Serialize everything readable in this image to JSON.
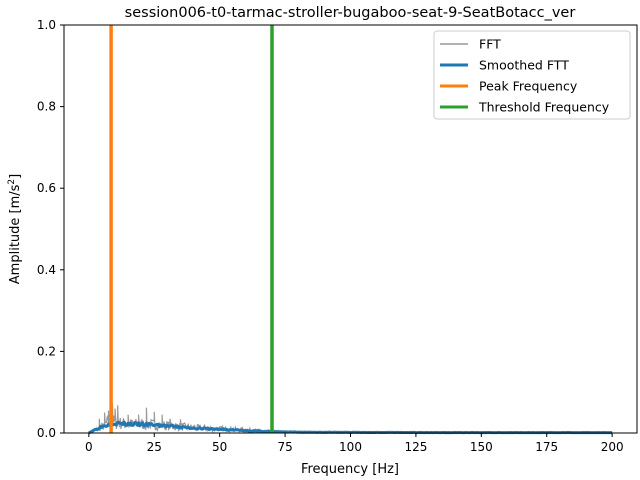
{
  "chart_data": {
    "type": "line",
    "title": "session006-t0-tarmac-stroller-bugaboo-seat-9-SeatBotacc_ver",
    "xlabel": "Frequency [Hz]",
    "ylabel_main": "Amplitude [m/s",
    "ylabel_sup": "2",
    "ylabel_end": "]",
    "xlim": [
      -9.5,
      209.5
    ],
    "ylim": [
      0,
      1.0
    ],
    "xticks": [
      0,
      25,
      50,
      75,
      100,
      125,
      150,
      175,
      200
    ],
    "yticks": [
      0.0,
      0.2,
      0.4,
      0.6,
      0.8,
      1.0
    ],
    "ytick_labels": [
      "0.0",
      "0.2",
      "0.4",
      "0.6",
      "0.8",
      "1.0"
    ],
    "legend_position": "top-right",
    "series": [
      {
        "name": "FFT",
        "color": "#999999",
        "kind": "noisy",
        "envelope": [
          [
            0,
            0.0
          ],
          [
            1,
            0.004
          ],
          [
            3,
            0.012
          ],
          [
            6,
            0.025
          ],
          [
            8,
            0.045
          ],
          [
            10,
            0.035
          ],
          [
            15,
            0.03
          ],
          [
            20,
            0.03
          ],
          [
            25,
            0.028
          ],
          [
            30,
            0.025
          ],
          [
            40,
            0.018
          ],
          [
            50,
            0.014
          ],
          [
            60,
            0.01
          ],
          [
            70,
            0.006
          ],
          [
            80,
            0.004
          ],
          [
            100,
            0.003
          ],
          [
            150,
            0.002
          ],
          [
            200,
            0.0015
          ]
        ],
        "spikes": [
          [
            4,
            0.035
          ],
          [
            6,
            0.05
          ],
          [
            7.5,
            0.055
          ],
          [
            9,
            0.072
          ],
          [
            10,
            0.06
          ],
          [
            11,
            0.068
          ],
          [
            15,
            0.045
          ],
          [
            19,
            0.045
          ],
          [
            22,
            0.062
          ],
          [
            25,
            0.052
          ],
          [
            28,
            0.045
          ],
          [
            31,
            0.035
          ],
          [
            35,
            0.034
          ]
        ]
      },
      {
        "name": "Smoothed FTT",
        "color": "#1f77b4",
        "kind": "smooth",
        "points": [
          [
            0,
            0.0
          ],
          [
            1,
            0.004
          ],
          [
            3,
            0.01
          ],
          [
            5,
            0.016
          ],
          [
            8,
            0.022
          ],
          [
            10,
            0.024
          ],
          [
            15,
            0.022
          ],
          [
            20,
            0.021
          ],
          [
            25,
            0.02
          ],
          [
            30,
            0.017
          ],
          [
            40,
            0.012
          ],
          [
            50,
            0.009
          ],
          [
            60,
            0.006
          ],
          [
            70,
            0.003
          ],
          [
            80,
            0.002
          ],
          [
            100,
            0.0015
          ],
          [
            150,
            0.001
          ],
          [
            200,
            0.001
          ]
        ]
      },
      {
        "name": "Peak Frequency",
        "color": "#ff7f0e",
        "kind": "vline",
        "x": 8.5
      },
      {
        "name": "Threshold Frequency",
        "color": "#2ca02c",
        "kind": "vline",
        "x": 70
      }
    ]
  }
}
